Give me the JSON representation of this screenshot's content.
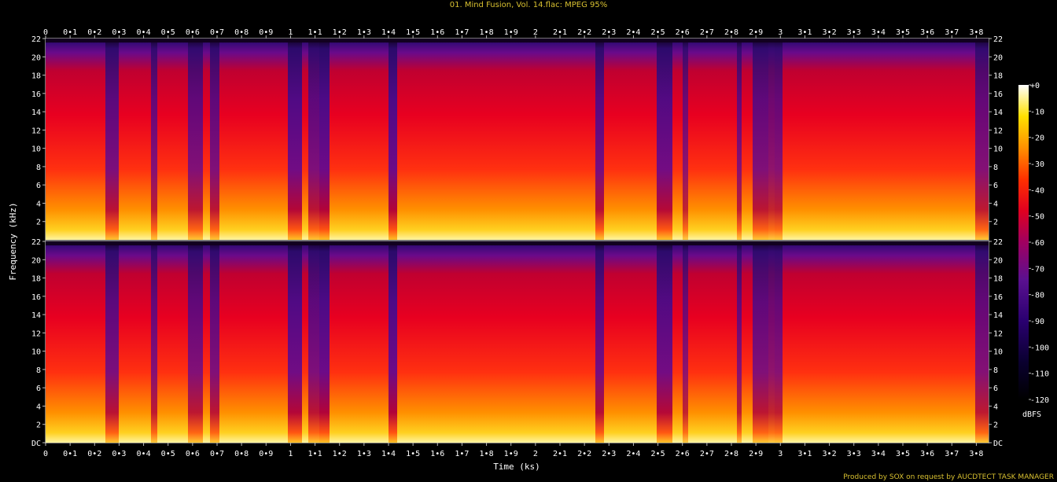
{
  "title": "01. Mind Fusion, Vol. 14.flac: MPEG 95%",
  "credit": "Produced by SOX on request by AUCDTECT TASK MANAGER",
  "chart_data": {
    "type": "heatmap",
    "title": "01. Mind Fusion, Vol. 14.flac: MPEG 95%",
    "xlabel": "Time (ks)",
    "ylabel": "Frequency (kHz)",
    "xlim": [
      0,
      3.85
    ],
    "ylim": [
      0,
      22
    ],
    "x_ticks": [
      {
        "v": 0,
        "t": "0"
      },
      {
        "v": 0.1,
        "t": "0•1"
      },
      {
        "v": 0.2,
        "t": "0•2"
      },
      {
        "v": 0.3,
        "t": "0•3"
      },
      {
        "v": 0.4,
        "t": "0•4"
      },
      {
        "v": 0.5,
        "t": "0•5"
      },
      {
        "v": 0.6,
        "t": "0•6"
      },
      {
        "v": 0.7,
        "t": "0•7"
      },
      {
        "v": 0.8,
        "t": "0•8"
      },
      {
        "v": 0.9,
        "t": "0•9"
      },
      {
        "v": 1.0,
        "t": "1"
      },
      {
        "v": 1.1,
        "t": "1•1"
      },
      {
        "v": 1.2,
        "t": "1•2"
      },
      {
        "v": 1.3,
        "t": "1•3"
      },
      {
        "v": 1.4,
        "t": "1•4"
      },
      {
        "v": 1.5,
        "t": "1•5"
      },
      {
        "v": 1.6,
        "t": "1•6"
      },
      {
        "v": 1.7,
        "t": "1•7"
      },
      {
        "v": 1.8,
        "t": "1•8"
      },
      {
        "v": 1.9,
        "t": "1•9"
      },
      {
        "v": 2.0,
        "t": "2"
      },
      {
        "v": 2.1,
        "t": "2•1"
      },
      {
        "v": 2.2,
        "t": "2•2"
      },
      {
        "v": 2.3,
        "t": "2•3"
      },
      {
        "v": 2.4,
        "t": "2•4"
      },
      {
        "v": 2.5,
        "t": "2•5"
      },
      {
        "v": 2.6,
        "t": "2•6"
      },
      {
        "v": 2.7,
        "t": "2•7"
      },
      {
        "v": 2.8,
        "t": "2•8"
      },
      {
        "v": 2.9,
        "t": "2•9"
      },
      {
        "v": 3.0,
        "t": "3"
      },
      {
        "v": 3.1,
        "t": "3•1"
      },
      {
        "v": 3.2,
        "t": "3•2"
      },
      {
        "v": 3.3,
        "t": "3•3"
      },
      {
        "v": 3.4,
        "t": "3•4"
      },
      {
        "v": 3.5,
        "t": "3•5"
      },
      {
        "v": 3.6,
        "t": "3•6"
      },
      {
        "v": 3.7,
        "t": "3•7"
      },
      {
        "v": 3.8,
        "t": "3•8"
      }
    ],
    "y_ticks_top": [
      "2",
      "4",
      "6",
      "8",
      "10",
      "12",
      "14",
      "16",
      "18",
      "20",
      "22"
    ],
    "y_ticks_bottom": [
      "DC",
      "2",
      "4",
      "6",
      "8",
      "10",
      "12",
      "14",
      "16",
      "18",
      "20",
      "22"
    ],
    "channels": 2,
    "colorbar": {
      "label": "dBFS",
      "range": [
        -120,
        0
      ],
      "ticks": [
        "+0",
        "-10",
        "-20",
        "-30",
        "-40",
        "-50",
        "-60",
        "-70",
        "-80",
        "-90",
        "-100",
        "-110",
        "-120"
      ]
    },
    "grid": false
  }
}
